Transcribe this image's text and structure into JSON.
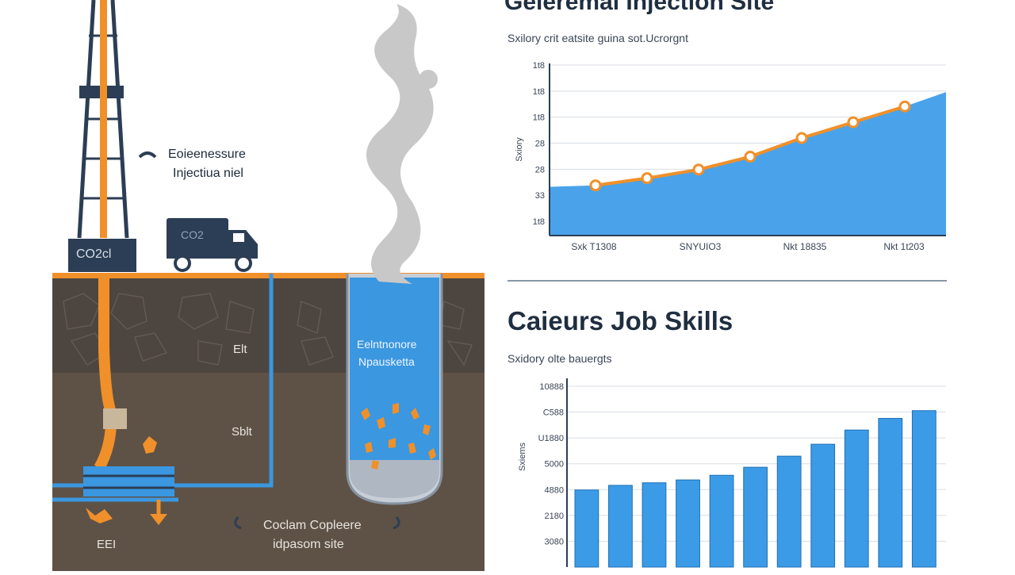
{
  "header": {
    "title": "Geleremai  Injection Site"
  },
  "scene": {
    "label_pressure_line1": "Eoieenessure",
    "label_pressure_line2": "Injectiua niel",
    "rig_box_label": "CO2cl",
    "truck_label": "CO2",
    "layer_label_1": "Elt",
    "layer_label_2": "Sblt",
    "tank_label_line1": "Eelntnonore",
    "tank_label_line2": "Npausketta",
    "bottom_label_left": "EEI",
    "bottom_label_line1": "Coclam Copleere",
    "bottom_label_line2": "idpasom site",
    "colors": {
      "orange": "#f0902a",
      "blue": "#3b97e0",
      "soil": "#5b5046",
      "navy": "#2c3e55",
      "smoke": "#c8c8c8"
    }
  },
  "chart1": {
    "subtitle": "Sxilory crit eatsite guina sot.Ucrorgnt"
  },
  "chart2": {
    "title": "Caieurs Job Skills",
    "subtitle": "Sxidory olte bauergts"
  },
  "chart_data": [
    {
      "type": "line",
      "area_fill": true,
      "area_color": "#4aa3ea",
      "line_color": "#f0902a",
      "ylabel": "Sxiory",
      "yticks": [
        "1t8",
        "1t8",
        "1t8",
        "28",
        "28",
        "33",
        "1t8"
      ],
      "xticks": [
        "Sxk T1308",
        "SNYUIO3",
        "Nkt 18835",
        "Nkt 1t203"
      ],
      "values": [
        35,
        40,
        46,
        55,
        68,
        79,
        90
      ],
      "area_end": 100,
      "ylim": [
        0,
        120
      ],
      "grid": true
    },
    {
      "type": "bar",
      "bar_color": "#3b9be6",
      "ylabel": "Sxiems",
      "yticks": [
        "10888",
        "C588",
        "U1880",
        "5000",
        "4880",
        "2180",
        "3080"
      ],
      "values": [
        2980,
        3160,
        3260,
        3370,
        3550,
        3860,
        4290,
        4750,
        5300,
        5750,
        6050
      ],
      "ylim": [
        0,
        7300
      ],
      "grid": true
    }
  ]
}
